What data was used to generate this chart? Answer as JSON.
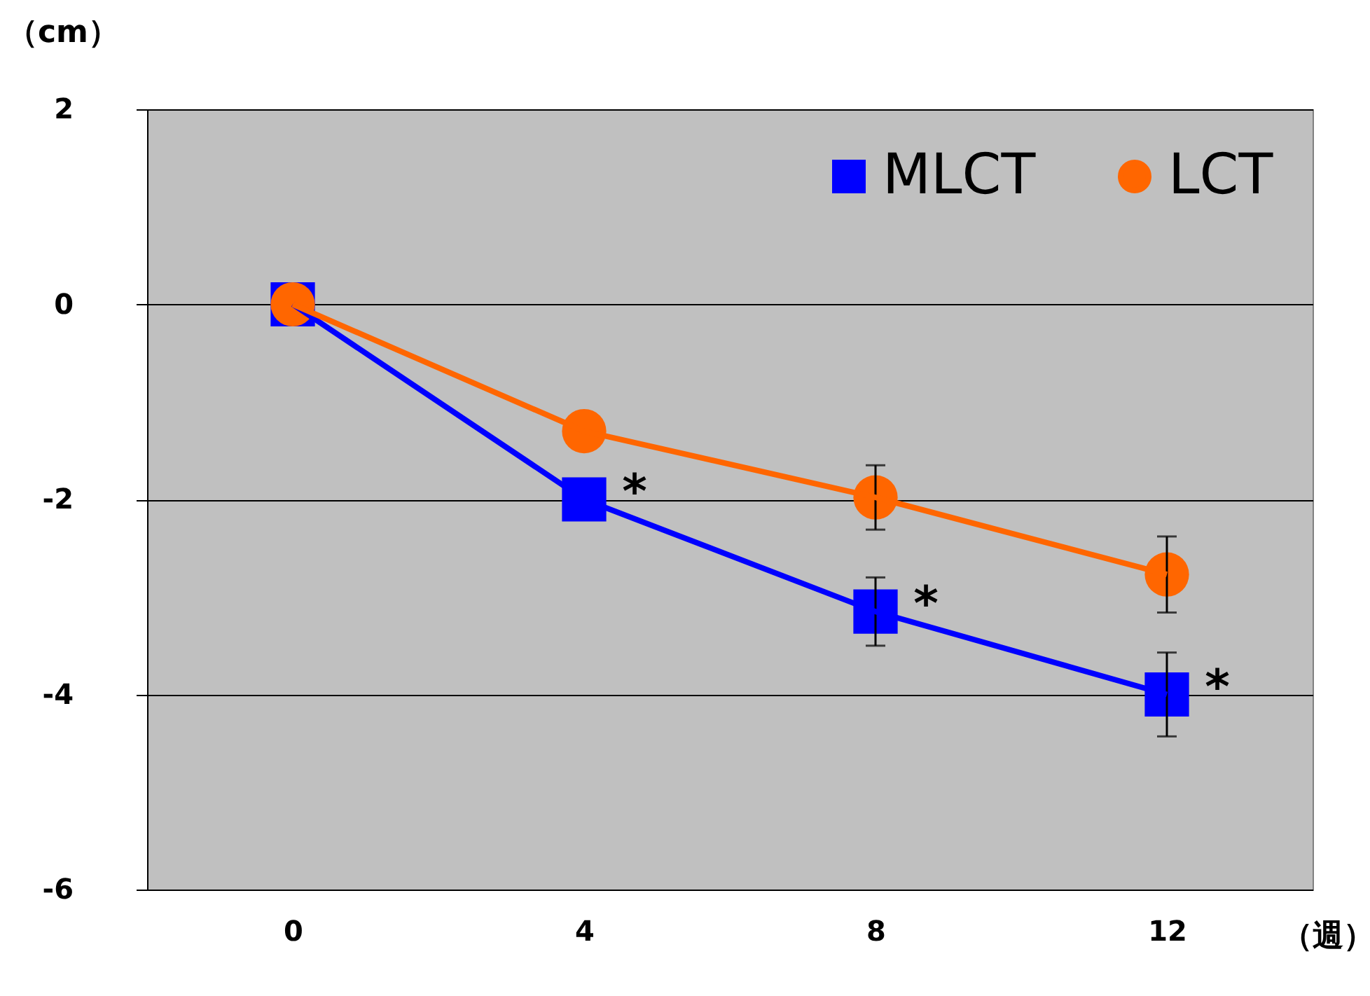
{
  "chart_data": {
    "type": "line",
    "ylabel": "（cm）",
    "xlabel": "（週）",
    "categories": [
      "0",
      "4",
      "8",
      "12"
    ],
    "series": [
      {
        "name": "MLCT",
        "color": "#0000ff",
        "marker": "square",
        "values": [
          0,
          -2.0,
          -3.15,
          -4.0
        ],
        "errors": [
          null,
          null,
          0.35,
          0.43
        ]
      },
      {
        "name": "LCT",
        "color": "#ff6600",
        "marker": "circle",
        "values": [
          0,
          -1.3,
          -1.98,
          -2.77
        ],
        "errors": [
          null,
          null,
          0.33,
          0.39
        ]
      }
    ],
    "ylim": [
      -6,
      2
    ],
    "yticks": [
      -6,
      -4,
      -2,
      0,
      2
    ],
    "grid": "y",
    "legend": "top right",
    "annotations": [
      {
        "text": "*",
        "x": "4",
        "y": -2.0
      },
      {
        "text": "*",
        "x": "8",
        "y": -3.15
      },
      {
        "text": "*",
        "x": "12",
        "y": -4.0
      }
    ]
  }
}
